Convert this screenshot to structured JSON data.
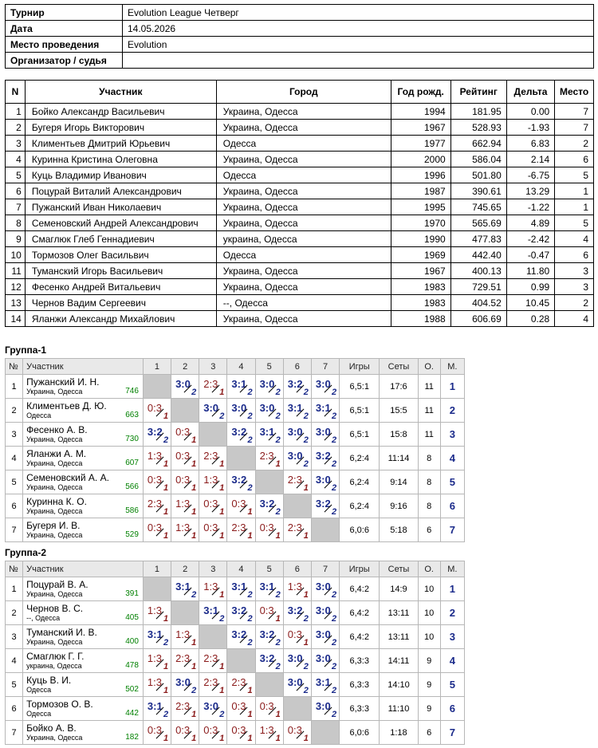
{
  "info": [
    {
      "key": "Турнир",
      "value": "Evolution League Четверг"
    },
    {
      "key": "Дата",
      "value": "14.05.2026"
    },
    {
      "key": "Место проведения",
      "value": "Evolution"
    },
    {
      "key": "Организатор / судья",
      "value": ""
    }
  ],
  "participants_headers": [
    "N",
    "Участник",
    "Город",
    "Год рожд.",
    "Рейтинг",
    "Дельта",
    "Место"
  ],
  "participants": [
    [
      "1",
      "Бойко Александр Васильевич",
      "Украина, Одесса",
      "1994",
      "181.95",
      "0.00",
      "7"
    ],
    [
      "2",
      "Бугеря Игорь Викторович",
      "Украина, Одесса",
      "1967",
      "528.93",
      "-1.93",
      "7"
    ],
    [
      "3",
      "Климентьев Дмитрий Юрьевич",
      "Одесса",
      "1977",
      "662.94",
      "6.83",
      "2"
    ],
    [
      "4",
      "Куринна Кристина Олеговна",
      "Украина, Одесса",
      "2000",
      "586.04",
      "2.14",
      "6"
    ],
    [
      "5",
      "Куць Владимир Иванович",
      "Одесса",
      "1996",
      "501.80",
      "-6.75",
      "5"
    ],
    [
      "6",
      "Поцурай Виталий Александрович",
      "Украина, Одесса",
      "1987",
      "390.61",
      "13.29",
      "1"
    ],
    [
      "7",
      "Пужанский Иван Николаевич",
      "Украина, Одесса",
      "1995",
      "745.65",
      "-1.22",
      "1"
    ],
    [
      "8",
      "Семеновский Андрей Александрович",
      "Украина, Одесса",
      "1970",
      "565.69",
      "4.89",
      "5"
    ],
    [
      "9",
      "Смаглюк Глеб Геннадиевич",
      "украина, Одесса",
      "1990",
      "477.83",
      "-2.42",
      "4"
    ],
    [
      "10",
      "Тормозов Олег Васильвич",
      "Одесса",
      "1969",
      "442.40",
      "-0.47",
      "6"
    ],
    [
      "11",
      "Туманский Игорь Васильевич",
      "Украина, Одесса",
      "1967",
      "400.13",
      "11.80",
      "3"
    ],
    [
      "12",
      "Фесенко Андрей Витальевич",
      "Украина, Одесса",
      "1983",
      "729.51",
      "0.99",
      "3"
    ],
    [
      "13",
      "Чернов Вадим Сергеевич",
      "--, Одесса",
      "1983",
      "404.52",
      "10.45",
      "2"
    ],
    [
      "14",
      "Яланжи Александр Михайлович",
      "Украина, Одесса",
      "1988",
      "606.69",
      "0.28",
      "4"
    ]
  ],
  "group_headers": [
    "№",
    "Участник",
    "1",
    "2",
    "3",
    "4",
    "5",
    "6",
    "7",
    "Игры",
    "Сеты",
    "О.",
    "М."
  ],
  "groups": [
    {
      "title": "Группа-1",
      "rows": [
        {
          "n": "1",
          "name": "Пужанский И. Н.",
          "city": "Украина, Одесса",
          "rating": "746",
          "res": [
            "",
            "3:0|2",
            "2:3|1",
            "3:1|2",
            "3:0|2",
            "3:2|2",
            "3:0|2"
          ],
          "games": "6,5:1",
          "sets": "17:6",
          "o": "11",
          "m": "1"
        },
        {
          "n": "2",
          "name": "Климентьев Д. Ю.",
          "city": "Одесса",
          "rating": "663",
          "res": [
            "0:3|1",
            "",
            "3:0|2",
            "3:0|2",
            "3:0|2",
            "3:1|2",
            "3:1|2"
          ],
          "games": "6,5:1",
          "sets": "15:5",
          "o": "11",
          "m": "2"
        },
        {
          "n": "3",
          "name": "Фесенко А. В.",
          "city": "Украина, Одесса",
          "rating": "730",
          "res": [
            "3:2|2",
            "0:3|1",
            "",
            "3:2|2",
            "3:1|2",
            "3:0|2",
            "3:0|2"
          ],
          "games": "6,5:1",
          "sets": "15:8",
          "o": "11",
          "m": "3"
        },
        {
          "n": "4",
          "name": "Яланжи А. М.",
          "city": "Украина, Одесса",
          "rating": "607",
          "res": [
            "1:3|1",
            "0:3|1",
            "2:3|1",
            "",
            "2:3|1",
            "3:0|2",
            "3:2|2"
          ],
          "games": "6,2:4",
          "sets": "11:14",
          "o": "8",
          "m": "4"
        },
        {
          "n": "5",
          "name": "Семеновский А. А.",
          "city": "Украина, Одесса",
          "rating": "566",
          "res": [
            "0:3|1",
            "0:3|1",
            "1:3|1",
            "3:2|2",
            "",
            "2:3|1",
            "3:0|2"
          ],
          "games": "6,2:4",
          "sets": "9:14",
          "o": "8",
          "m": "5"
        },
        {
          "n": "6",
          "name": "Куринна К. О.",
          "city": "Украина, Одесса",
          "rating": "586",
          "res": [
            "2:3|1",
            "1:3|1",
            "0:3|1",
            "0:3|1",
            "3:2|2",
            "",
            "3:2|2"
          ],
          "games": "6,2:4",
          "sets": "9:16",
          "o": "8",
          "m": "6"
        },
        {
          "n": "7",
          "name": "Бугеря И. В.",
          "city": "Украина, Одесса",
          "rating": "529",
          "res": [
            "0:3|1",
            "1:3|1",
            "0:3|1",
            "2:3|1",
            "0:3|1",
            "2:3|1",
            ""
          ],
          "games": "6,0:6",
          "sets": "5:18",
          "o": "6",
          "m": "7"
        }
      ]
    },
    {
      "title": "Группа-2",
      "rows": [
        {
          "n": "1",
          "name": "Поцурай В. А.",
          "city": "Украина, Одесса",
          "rating": "391",
          "res": [
            "",
            "3:1|2",
            "1:3|1",
            "3:1|2",
            "3:1|2",
            "1:3|1",
            "3:0|2"
          ],
          "games": "6,4:2",
          "sets": "14:9",
          "o": "10",
          "m": "1"
        },
        {
          "n": "2",
          "name": "Чернов В. С.",
          "city": "--, Одесса",
          "rating": "405",
          "res": [
            "1:3|1",
            "",
            "3:1|2",
            "3:2|2",
            "0:3|1",
            "3:2|2",
            "3:0|2"
          ],
          "games": "6,4:2",
          "sets": "13:11",
          "o": "10",
          "m": "2"
        },
        {
          "n": "3",
          "name": "Туманский И. В.",
          "city": "Украина, Одесса",
          "rating": "400",
          "res": [
            "3:1|2",
            "1:3|1",
            "",
            "3:2|2",
            "3:2|2",
            "0:3|1",
            "3:0|2"
          ],
          "games": "6,4:2",
          "sets": "13:11",
          "o": "10",
          "m": "3"
        },
        {
          "n": "4",
          "name": "Смаглюк Г. Г.",
          "city": "украина, Одесса",
          "rating": "478",
          "res": [
            "1:3|1",
            "2:3|1",
            "2:3|1",
            "",
            "3:2|2",
            "3:0|2",
            "3:0|2"
          ],
          "games": "6,3:3",
          "sets": "14:11",
          "o": "9",
          "m": "4"
        },
        {
          "n": "5",
          "name": "Куць В. И.",
          "city": "Одесса",
          "rating": "502",
          "res": [
            "1:3|1",
            "3:0|2",
            "2:3|1",
            "2:3|1",
            "",
            "3:0|2",
            "3:1|2"
          ],
          "games": "6,3:3",
          "sets": "14:10",
          "o": "9",
          "m": "5"
        },
        {
          "n": "6",
          "name": "Тормозов О. В.",
          "city": "Одесса",
          "rating": "442",
          "res": [
            "3:1|2",
            "2:3|1",
            "3:0|2",
            "0:3|1",
            "0:3|1",
            "",
            "3:0|2"
          ],
          "games": "6,3:3",
          "sets": "11:10",
          "o": "9",
          "m": "6"
        },
        {
          "n": "7",
          "name": "Бойко А. В.",
          "city": "Украина, Одесса",
          "rating": "182",
          "res": [
            "0:3|1",
            "0:3|1",
            "0:3|1",
            "0:3|1",
            "1:3|1",
            "0:3|1",
            ""
          ],
          "games": "6,0:6",
          "sets": "1:18",
          "o": "6",
          "m": "7"
        }
      ]
    }
  ]
}
